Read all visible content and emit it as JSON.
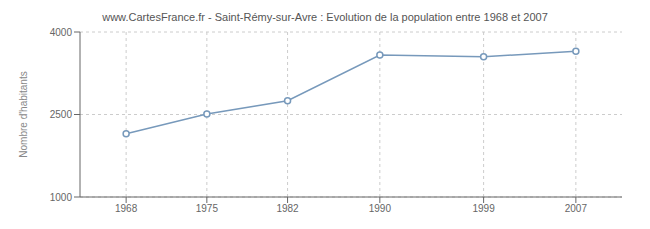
{
  "chart_data": {
    "type": "line",
    "title": "www.CartesFrance.fr - Saint-Rémy-sur-Avre : Evolution de la population entre 1968 et 2007",
    "ylabel": "Nombre d'habitants",
    "x": [
      1968,
      1975,
      1982,
      1990,
      1999,
      2007
    ],
    "values": [
      2150,
      2510,
      2750,
      3580,
      3550,
      3650
    ],
    "color": "#7799bb",
    "marker": "circle",
    "xlim": [
      1964,
      2011
    ],
    "xticks": [
      1968,
      1975,
      1982,
      1990,
      1999,
      2007
    ],
    "ylim": [
      1000,
      4000
    ],
    "yticks": [
      1000,
      2500,
      4000
    ],
    "grid": true
  }
}
